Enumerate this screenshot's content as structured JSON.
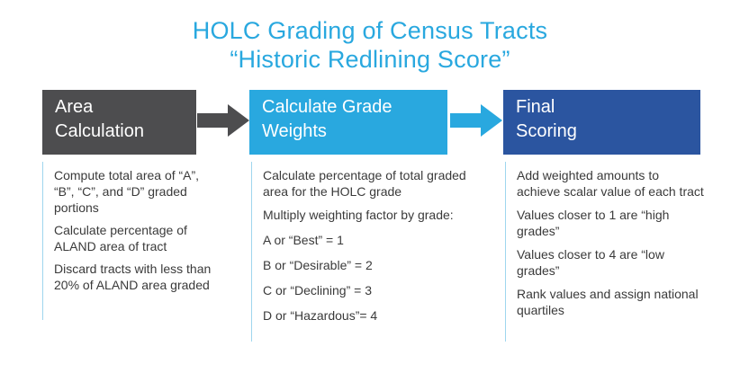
{
  "title": {
    "line1": "HOLC Grading of Census Tracts",
    "line2": "“Historic Redlining Score”"
  },
  "steps": [
    {
      "header": [
        "Area",
        "Calculation"
      ],
      "items": [
        [
          "Compute total area of “A”,",
          "“B”, “C”, and “D” graded",
          "portions"
        ],
        [
          "Calculate percentage of",
          "ALAND area of tract"
        ],
        [
          "Discard tracts with less than",
          "20% of ALAND area graded"
        ]
      ]
    },
    {
      "header": [
        "Calculate Grade",
        "Weights"
      ],
      "items": [
        [
          "Calculate percentage of total graded",
          "area for the HOLC grade"
        ],
        [
          "Multiply weighting factor by grade:"
        ]
      ],
      "grades": [
        "A or “Best” = 1",
        "B or “Desirable” = 2",
        "C or “Declining” = 3",
        "D or “Hazardous”= 4"
      ]
    },
    {
      "header": [
        "Final",
        "Scoring"
      ],
      "items": [
        [
          "Add weighted  amounts to",
          "achieve scalar value of each tract"
        ],
        [
          "Values closer to 1 are “high",
          "grades”"
        ],
        [
          "Values closer to 4 are “low",
          "grades”"
        ],
        [
          "Rank values and assign national",
          "quartiles"
        ]
      ]
    }
  ],
  "colors": {
    "title": "#29a8df",
    "step1": "#4d4d4f",
    "step2": "#29a8df",
    "step3": "#2b55a0"
  }
}
